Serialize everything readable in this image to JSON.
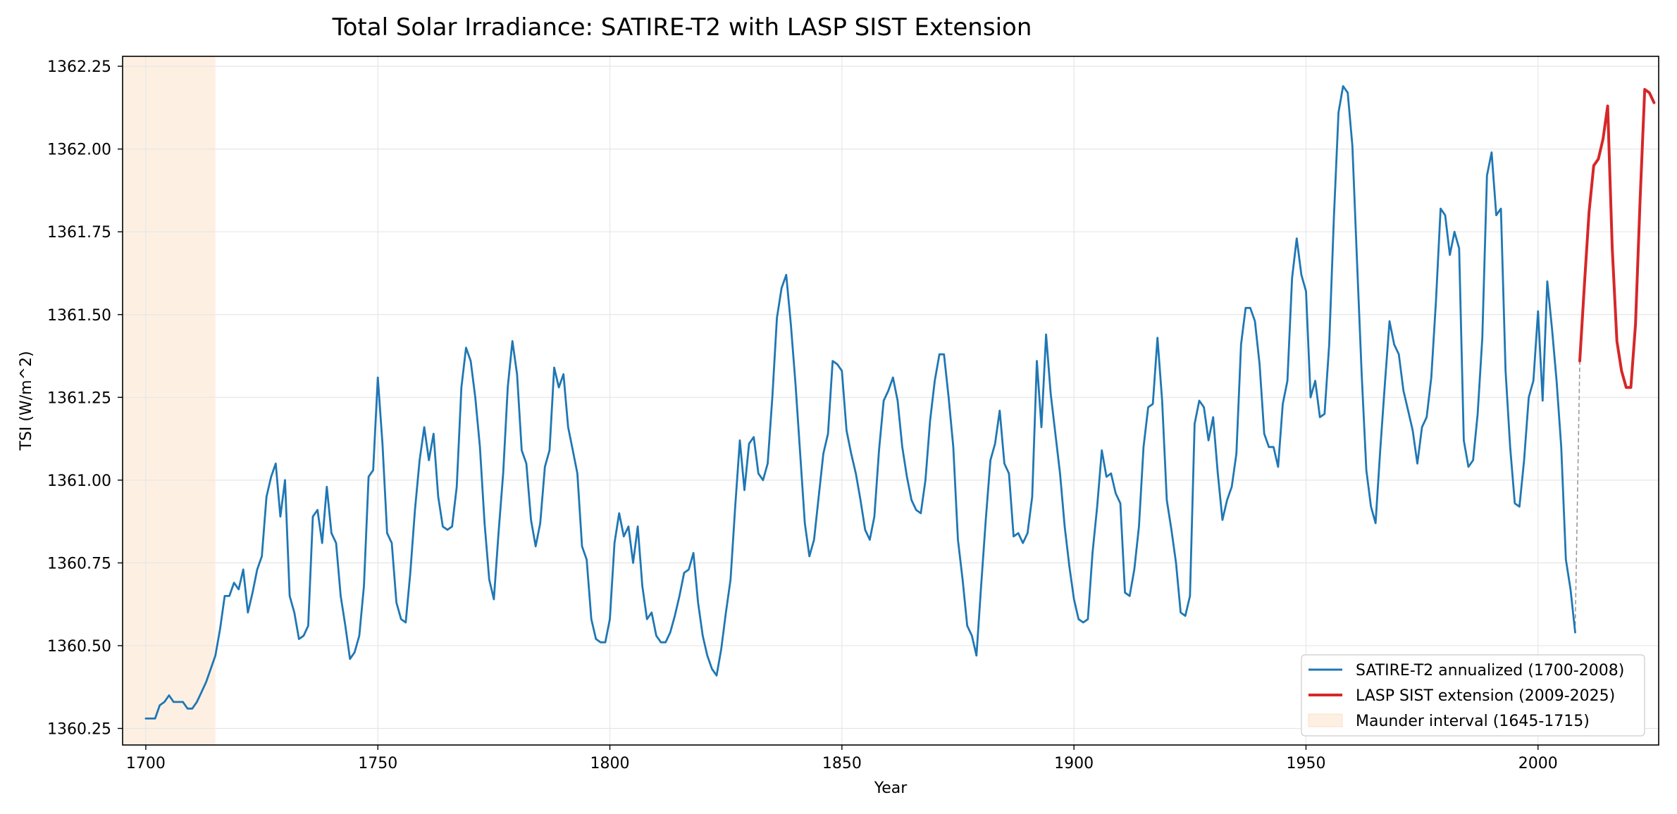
{
  "chart_data": {
    "type": "line",
    "title": "Total Solar Irradiance: SATIRE-T2 with LASP SIST Extension",
    "xlabel": "Year",
    "ylabel": "TSI (W/m^2)",
    "xlim": [
      1695,
      2026
    ],
    "ylim": [
      1360.2,
      1362.28
    ],
    "xticks": [
      1700,
      1750,
      1800,
      1850,
      1900,
      1950,
      2000
    ],
    "xtick_labels": [
      "1700",
      "1750",
      "1800",
      "1850",
      "1900",
      "1950",
      "2000"
    ],
    "yticks": [
      1360.25,
      1360.5,
      1360.75,
      1361.0,
      1361.25,
      1361.5,
      1361.75,
      1362.0,
      1362.25
    ],
    "ytick_labels": [
      "1360.25",
      "1360.50",
      "1360.75",
      "1361.00",
      "1361.25",
      "1361.50",
      "1361.75",
      "1362.00",
      "1362.25"
    ],
    "grid": true,
    "legend_position": "bottom-right",
    "shaded_region": {
      "name": "Maunder interval (1645-1715)",
      "x_start": 1645,
      "x_end": 1715,
      "color": "#fdf0e3"
    },
    "connector": {
      "x": [
        2008,
        2009
      ],
      "y": [
        1360.54,
        1361.36
      ],
      "color": "#999999",
      "style": "dashed"
    },
    "series": [
      {
        "name": "SATIRE-T2 annualized (1700-2008)",
        "color": "#1f77b4",
        "x_start": 1700,
        "y": [
          1360.28,
          1360.28,
          1360.28,
          1360.32,
          1360.33,
          1360.35,
          1360.33,
          1360.33,
          1360.33,
          1360.31,
          1360.31,
          1360.33,
          1360.36,
          1360.39,
          1360.43,
          1360.47,
          1360.55,
          1360.65,
          1360.65,
          1360.69,
          1360.67,
          1360.73,
          1360.6,
          1360.66,
          1360.73,
          1360.77,
          1360.95,
          1361.01,
          1361.05,
          1360.89,
          1361.0,
          1360.65,
          1360.6,
          1360.52,
          1360.53,
          1360.56,
          1360.89,
          1360.91,
          1360.81,
          1360.98,
          1360.84,
          1360.81,
          1360.65,
          1360.56,
          1360.46,
          1360.48,
          1360.53,
          1360.68,
          1361.01,
          1361.03,
          1361.31,
          1361.11,
          1360.84,
          1360.81,
          1360.63,
          1360.58,
          1360.57,
          1360.72,
          1360.91,
          1361.06,
          1361.16,
          1361.06,
          1361.14,
          1360.95,
          1360.86,
          1360.85,
          1360.86,
          1360.98,
          1361.28,
          1361.4,
          1361.36,
          1361.25,
          1361.1,
          1360.87,
          1360.7,
          1360.64,
          1360.84,
          1361.02,
          1361.28,
          1361.42,
          1361.32,
          1361.09,
          1361.05,
          1360.88,
          1360.8,
          1360.87,
          1361.04,
          1361.09,
          1361.34,
          1361.28,
          1361.32,
          1361.16,
          1361.09,
          1361.02,
          1360.8,
          1360.76,
          1360.58,
          1360.52,
          1360.51,
          1360.51,
          1360.58,
          1360.81,
          1360.9,
          1360.83,
          1360.86,
          1360.75,
          1360.86,
          1360.68,
          1360.58,
          1360.6,
          1360.53,
          1360.51,
          1360.51,
          1360.54,
          1360.59,
          1360.65,
          1360.72,
          1360.73,
          1360.78,
          1360.63,
          1360.53,
          1360.47,
          1360.43,
          1360.41,
          1360.49,
          1360.6,
          1360.7,
          1360.92,
          1361.12,
          1360.97,
          1361.11,
          1361.13,
          1361.02,
          1361.0,
          1361.05,
          1361.25,
          1361.49,
          1361.58,
          1361.62,
          1361.47,
          1361.29,
          1361.08,
          1360.87,
          1360.77,
          1360.82,
          1360.95,
          1361.08,
          1361.14,
          1361.36,
          1361.35,
          1361.33,
          1361.15,
          1361.08,
          1361.02,
          1360.94,
          1360.85,
          1360.82,
          1360.89,
          1361.09,
          1361.24,
          1361.27,
          1361.31,
          1361.24,
          1361.1,
          1361.01,
          1360.94,
          1360.91,
          1360.9,
          1361.0,
          1361.18,
          1361.3,
          1361.38,
          1361.38,
          1361.25,
          1361.1,
          1360.82,
          1360.7,
          1360.56,
          1360.53,
          1360.47,
          1360.68,
          1360.88,
          1361.06,
          1361.11,
          1361.21,
          1361.05,
          1361.02,
          1360.83,
          1360.84,
          1360.81,
          1360.84,
          1360.95,
          1361.36,
          1361.16,
          1361.44,
          1361.26,
          1361.14,
          1361.02,
          1360.86,
          1360.74,
          1360.64,
          1360.58,
          1360.57,
          1360.58,
          1360.78,
          1360.92,
          1361.09,
          1361.01,
          1361.02,
          1360.96,
          1360.93,
          1360.66,
          1360.65,
          1360.73,
          1360.86,
          1361.1,
          1361.22,
          1361.23,
          1361.43,
          1361.24,
          1360.94,
          1360.85,
          1360.75,
          1360.6,
          1360.59,
          1360.65,
          1361.17,
          1361.24,
          1361.22,
          1361.12,
          1361.19,
          1361.02,
          1360.88,
          1360.94,
          1360.98,
          1361.08,
          1361.41,
          1361.52,
          1361.52,
          1361.48,
          1361.35,
          1361.14,
          1361.1,
          1361.1,
          1361.04,
          1361.23,
          1361.3,
          1361.61,
          1361.73,
          1361.62,
          1361.57,
          1361.25,
          1361.3,
          1361.19,
          1361.2,
          1361.41,
          1361.79,
          1362.11,
          1362.19,
          1362.17,
          1362.01,
          1361.66,
          1361.32,
          1361.03,
          1360.92,
          1360.87,
          1361.09,
          1361.29,
          1361.48,
          1361.41,
          1361.38,
          1361.27,
          1361.21,
          1361.15,
          1361.05,
          1361.16,
          1361.19,
          1361.31,
          1361.54,
          1361.82,
          1361.8,
          1361.68,
          1361.75,
          1361.7,
          1361.12,
          1361.04,
          1361.06,
          1361.2,
          1361.43,
          1361.92,
          1361.99,
          1361.8,
          1361.82,
          1361.33,
          1361.1,
          1360.93,
          1360.92,
          1361.06,
          1361.25,
          1361.3,
          1361.51,
          1361.24,
          1361.6,
          1361.46,
          1361.3,
          1361.1,
          1360.76,
          1360.67,
          1360.54
        ]
      },
      {
        "name": "LASP SIST extension (2009-2025)",
        "color": "#d62728",
        "x_start": 2009,
        "y": [
          1361.36,
          1361.59,
          1361.81,
          1361.95,
          1361.97,
          1362.03,
          1362.13,
          1361.7,
          1361.42,
          1361.33,
          1361.28,
          1361.28,
          1361.47,
          1361.85,
          1362.18,
          1362.17,
          1362.14
        ]
      }
    ]
  }
}
